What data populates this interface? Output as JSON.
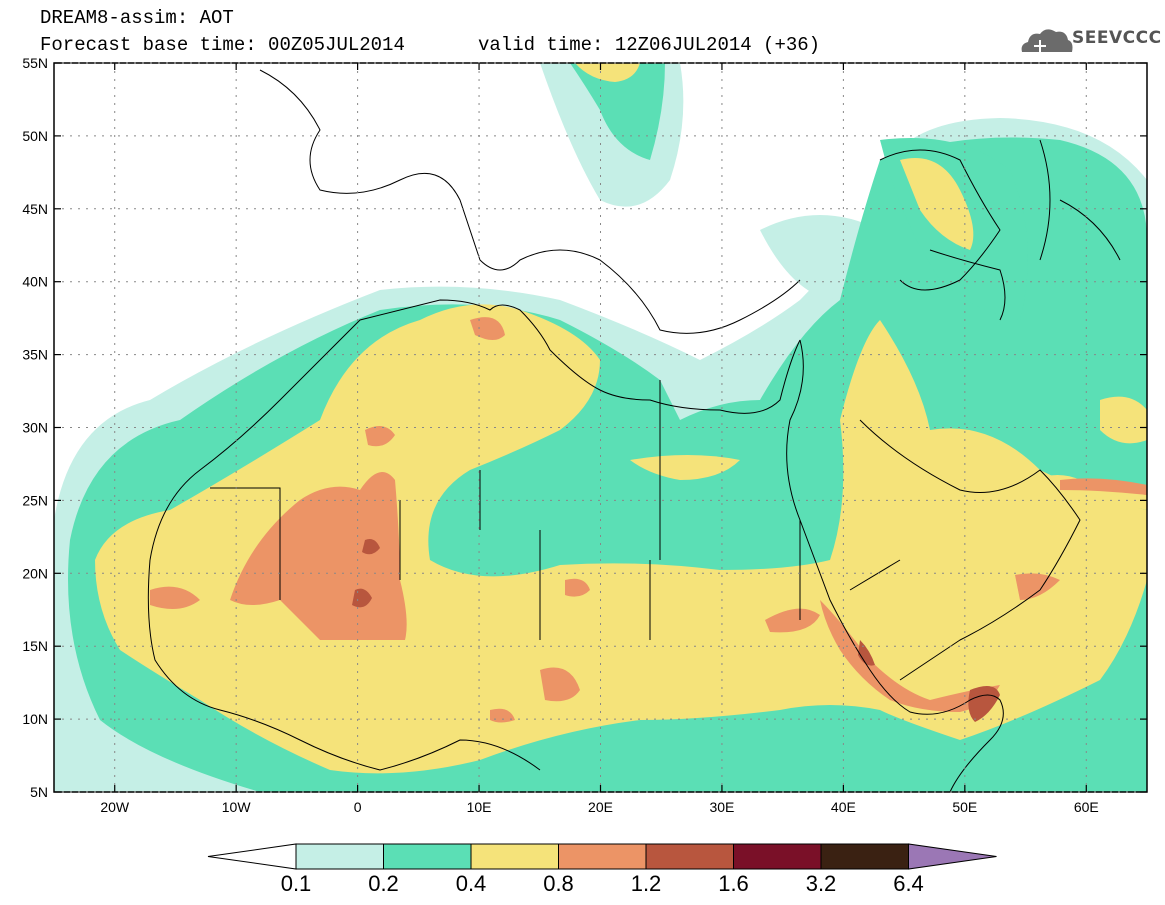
{
  "header": {
    "title": "DREAM8-assim: AOT",
    "base_time": "Forecast base time: 00Z05JUL2014",
    "valid_time": "valid time: 12Z06JUL2014 (+36)"
  },
  "logo": {
    "text": "SEEVCCC",
    "icon": "cloud-icon"
  },
  "map": {
    "lon_range": [
      -25,
      65
    ],
    "lat_range": [
      5,
      55
    ],
    "lon_ticks": [
      {
        "value": -20,
        "label": "20W"
      },
      {
        "value": -10,
        "label": "10W"
      },
      {
        "value": 0,
        "label": "0"
      },
      {
        "value": 10,
        "label": "10E"
      },
      {
        "value": 20,
        "label": "20E"
      },
      {
        "value": 30,
        "label": "30E"
      },
      {
        "value": 40,
        "label": "40E"
      },
      {
        "value": 50,
        "label": "50E"
      },
      {
        "value": 60,
        "label": "60E"
      }
    ],
    "lat_ticks": [
      {
        "value": 5,
        "label": "5N"
      },
      {
        "value": 10,
        "label": "10N"
      },
      {
        "value": 15,
        "label": "15N"
      },
      {
        "value": 20,
        "label": "20N"
      },
      {
        "value": 25,
        "label": "25N"
      },
      {
        "value": 30,
        "label": "30N"
      },
      {
        "value": 35,
        "label": "35N"
      },
      {
        "value": 40,
        "label": "40N"
      },
      {
        "value": 45,
        "label": "45N"
      },
      {
        "value": 50,
        "label": "50N"
      },
      {
        "value": 55,
        "label": "55N"
      }
    ],
    "grid": true
  },
  "colorbar": {
    "labels": [
      "0.1",
      "0.2",
      "0.4",
      "0.8",
      "1.2",
      "1.6",
      "3.2",
      "6.4"
    ],
    "colors": {
      "below": "#ffffff",
      "bins": [
        "#c5efe6",
        "#5bdfb5",
        "#f5e37a",
        "#ec9466",
        "#b8563e",
        "#7a1028",
        "#3a2112"
      ],
      "above": "#9b77b5"
    }
  },
  "palette": {
    "l1": "#c5efe6",
    "l2": "#5bdfb5",
    "l3": "#f5e37a",
    "l4": "#ec9466",
    "l5": "#b8563e",
    "l6": "#7a1028"
  }
}
